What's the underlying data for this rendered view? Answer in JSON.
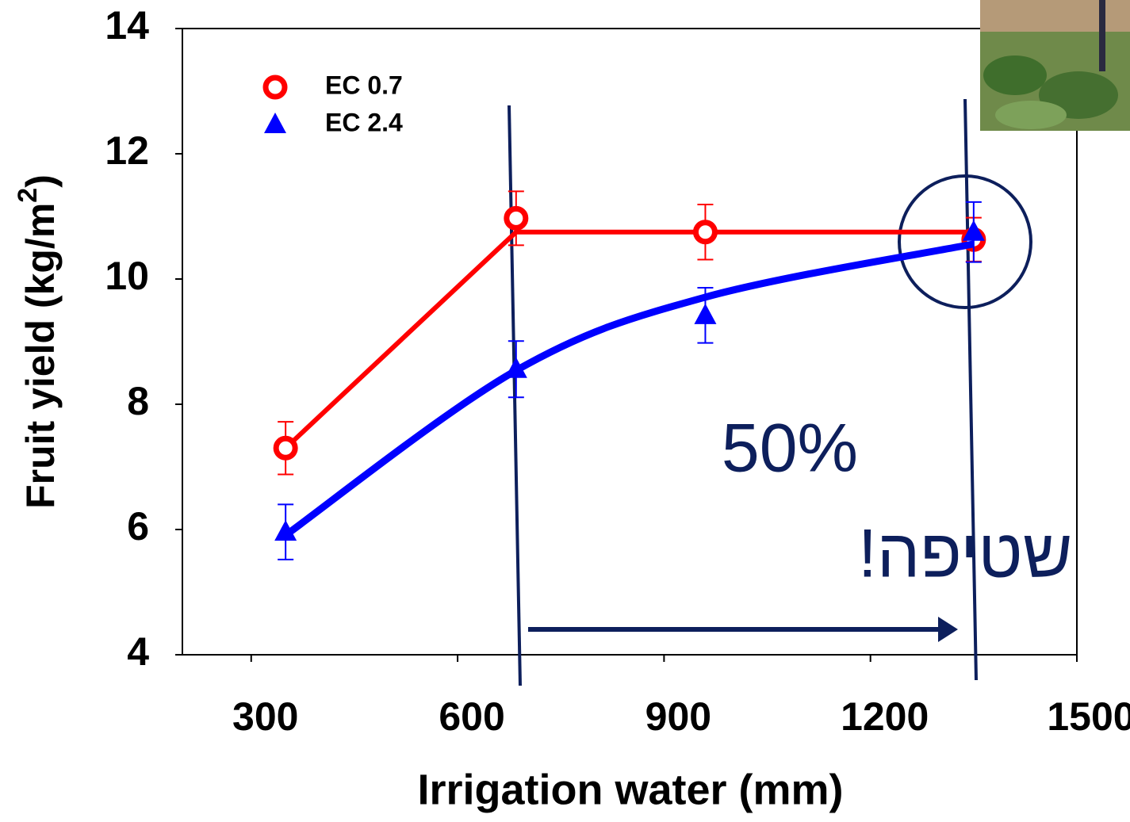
{
  "chart_data": {
    "type": "line",
    "x_label": "Irrigation water (mm)",
    "y_label": "Fruit yield (kg/m²)",
    "annotations": [
      "50%",
      "שטיפה!"
    ],
    "xlim": [
      200,
      1500
    ],
    "xticks": [
      300,
      600,
      900,
      1200,
      1500
    ],
    "ylim": [
      4,
      14
    ],
    "yticks": [
      4,
      6,
      8,
      10,
      12,
      14
    ],
    "x": [
      350,
      685,
      960,
      1350
    ],
    "series": [
      {
        "name": "EC 0.7",
        "color": "#ff0000",
        "marker": "circle",
        "values": [
          7.3,
          10.97,
          10.75,
          10.63
        ],
        "errors": [
          0.42,
          0.43,
          0.44,
          0.35
        ],
        "fit": [
          7.3,
          10.75,
          10.75,
          10.75
        ]
      },
      {
        "name": "EC 2.4",
        "color": "#0000ff",
        "marker": "triangle",
        "values": [
          5.96,
          8.56,
          9.42,
          10.75
        ],
        "errors": [
          0.44,
          0.45,
          0.44,
          0.48
        ],
        "fit": [
          5.91,
          8.54,
          9.71,
          10.56
        ]
      }
    ]
  }
}
